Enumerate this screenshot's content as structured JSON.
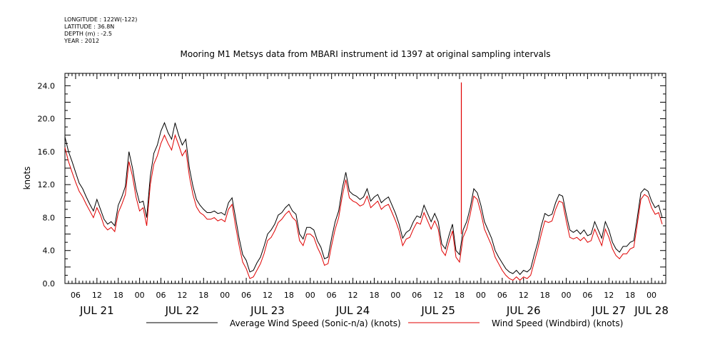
{
  "header": {
    "meta": [
      "LONGITUDE : 122W(-122)",
      "LATITUDE : 36.8N",
      "DEPTH (m) : -2.5",
      "YEAR : 2012"
    ],
    "title": "Mooring M1 Metsys data from MBARI instrument id 1397 at original sampling intervals"
  },
  "chart_data": {
    "type": "line",
    "title": "Mooring M1 Metsys data from MBARI instrument id 1397 at original sampling intervals",
    "xlabel": "",
    "ylabel": "knots",
    "xlim": [
      3,
      172
    ],
    "ylim": [
      0,
      25.5
    ],
    "yticks": [
      0,
      4,
      8,
      12,
      16,
      20,
      24
    ],
    "ytick_labels": [
      "0.0",
      "4.0",
      "8.0",
      "12.0",
      "16.0",
      "20.0",
      "24.0"
    ],
    "x_units": "hours since JUL 21 00:00, 2012",
    "xtick_labels": [
      {
        "x": 6,
        "label": "06"
      },
      {
        "x": 12,
        "label": "12"
      },
      {
        "x": 18,
        "label": "18"
      },
      {
        "x": 24,
        "label": "00"
      },
      {
        "x": 30,
        "label": "06"
      },
      {
        "x": 36,
        "label": "12"
      },
      {
        "x": 42,
        "label": "18"
      },
      {
        "x": 48,
        "label": "00"
      },
      {
        "x": 54,
        "label": "06"
      },
      {
        "x": 60,
        "label": "12"
      },
      {
        "x": 66,
        "label": "18"
      },
      {
        "x": 72,
        "label": "00"
      },
      {
        "x": 78,
        "label": "06"
      },
      {
        "x": 84,
        "label": "12"
      },
      {
        "x": 90,
        "label": "18"
      },
      {
        "x": 96,
        "label": "00"
      },
      {
        "x": 102,
        "label": "06"
      },
      {
        "x": 108,
        "label": "12"
      },
      {
        "x": 114,
        "label": "18"
      },
      {
        "x": 120,
        "label": "00"
      },
      {
        "x": 126,
        "label": "06"
      },
      {
        "x": 132,
        "label": "12"
      },
      {
        "x": 138,
        "label": "18"
      },
      {
        "x": 144,
        "label": "00"
      },
      {
        "x": 150,
        "label": "06"
      },
      {
        "x": 156,
        "label": "12"
      },
      {
        "x": 162,
        "label": "18"
      },
      {
        "x": 168,
        "label": "00"
      }
    ],
    "day_labels": [
      {
        "x": 12,
        "label": "JUL 21"
      },
      {
        "x": 36,
        "label": "JUL 22"
      },
      {
        "x": 60,
        "label": "JUL 23"
      },
      {
        "x": 84,
        "label": "JUL 24"
      },
      {
        "x": 108,
        "label": "JUL 25"
      },
      {
        "x": 132,
        "label": "JUL 26"
      },
      {
        "x": 156,
        "label": "JUL 27"
      },
      {
        "x": 168,
        "label": "JUL 28"
      }
    ],
    "legend_position": "bottom",
    "series": [
      {
        "name": "Average Wind Speed (Sonic-n/a) (knots)",
        "color": "#000000",
        "x": [
          3,
          4,
          5,
          6,
          7,
          8,
          9,
          10,
          11,
          12,
          13,
          14,
          15,
          16,
          17,
          18,
          19,
          20,
          21,
          22,
          23,
          24,
          25,
          26,
          27,
          28,
          29,
          30,
          31,
          32,
          33,
          34,
          35,
          36,
          37,
          38,
          39,
          40,
          41,
          42,
          43,
          44,
          45,
          46,
          47,
          48,
          49,
          50,
          51,
          52,
          53,
          54,
          55,
          56,
          57,
          58,
          59,
          60,
          61,
          62,
          63,
          64,
          65,
          66,
          67,
          68,
          69,
          70,
          71,
          72,
          73,
          74,
          75,
          76,
          77,
          78,
          79,
          80,
          81,
          82,
          83,
          84,
          85,
          86,
          87,
          88,
          89,
          90,
          91,
          92,
          93,
          94,
          95,
          96,
          97,
          98,
          99,
          100,
          101,
          102,
          103,
          104,
          105,
          106,
          107,
          108,
          109,
          110,
          111,
          112,
          113,
          114,
          115,
          116,
          117,
          118,
          119,
          120,
          121,
          122,
          123,
          124,
          125,
          126,
          127,
          128,
          129,
          130,
          131,
          132,
          133,
          134,
          135,
          136,
          137,
          138,
          139,
          140,
          141,
          142,
          143,
          144,
          145,
          146,
          147,
          148,
          149,
          150,
          151,
          152,
          153,
          154,
          155,
          156,
          157,
          158,
          159,
          160,
          161,
          162,
          163,
          164,
          165,
          166,
          167,
          168,
          169,
          170,
          171
        ],
        "y": [
          17.8,
          16,
          14.8,
          13.5,
          12.2,
          11.5,
          10.5,
          9.6,
          8.8,
          10.2,
          9,
          7.8,
          7.2,
          7.5,
          7,
          9.5,
          10.5,
          11.8,
          16,
          14,
          11.5,
          9.8,
          10,
          8,
          13,
          15.8,
          16.8,
          18.5,
          19.5,
          18.3,
          17.5,
          19.5,
          18,
          16.8,
          17.5,
          14,
          11.8,
          10.2,
          9.5,
          9,
          8.6,
          8.6,
          8.8,
          8.5,
          8.6,
          8.3,
          9.8,
          10.4,
          8,
          5.5,
          3.5,
          2.8,
          1.4,
          1.6,
          2.5,
          3.2,
          4.5,
          6,
          6.5,
          7.2,
          8.3,
          8.6,
          9.2,
          9.6,
          8.8,
          8.4,
          6,
          5.4,
          6.8,
          6.8,
          6.5,
          5.2,
          4.4,
          3,
          3.2,
          5.5,
          7.5,
          8.8,
          11.5,
          13.5,
          11.2,
          10.8,
          10.6,
          10.2,
          10.5,
          11.5,
          10,
          10.5,
          10.8,
          9.8,
          10.2,
          10.5,
          9.5,
          8.5,
          7.2,
          5.5,
          6.2,
          6.5,
          7.5,
          8.2,
          8,
          9.5,
          8.5,
          7.5,
          8.5,
          7.5,
          4.8,
          4.2,
          5.8,
          7.2,
          4,
          3.5,
          6.5,
          7.5,
          9.2,
          11.5,
          11,
          9.5,
          7.5,
          6.5,
          5.5,
          4,
          3.2,
          2.5,
          1.8,
          1.4,
          1.2,
          1.6,
          1.1,
          1.6,
          1.4,
          1.8,
          3.5,
          5,
          7,
          8.5,
          8.2,
          8.4,
          9.8,
          10.8,
          10.6,
          8.4,
          6.5,
          6.2,
          6.5,
          6,
          6.5,
          5.8,
          6,
          7.5,
          6.5,
          5.5,
          7.5,
          6.5,
          5,
          4.2,
          3.8,
          4.5,
          4.5,
          5,
          5.2,
          8,
          11,
          11.5,
          11.2,
          10,
          9.2,
          9.5,
          8
        ]
      },
      {
        "name": "Wind Speed (Windbird) (knots)",
        "color": "#e00000",
        "x": [
          3,
          4,
          5,
          6,
          7,
          8,
          9,
          10,
          11,
          12,
          13,
          14,
          15,
          16,
          17,
          18,
          19,
          20,
          21,
          22,
          23,
          24,
          25,
          26,
          27,
          28,
          29,
          30,
          31,
          32,
          33,
          34,
          35,
          36,
          37,
          38,
          39,
          40,
          41,
          42,
          43,
          44,
          45,
          46,
          47,
          48,
          49,
          50,
          51,
          52,
          53,
          54,
          55,
          56,
          57,
          58,
          59,
          60,
          61,
          62,
          63,
          64,
          65,
          66,
          67,
          68,
          69,
          70,
          71,
          72,
          73,
          74,
          75,
          76,
          77,
          78,
          79,
          80,
          81,
          82,
          83,
          84,
          85,
          86,
          87,
          88,
          89,
          90,
          91,
          92,
          93,
          94,
          95,
          96,
          97,
          98,
          99,
          100,
          101,
          102,
          103,
          104,
          105,
          106,
          107,
          108,
          109,
          110,
          111,
          112,
          113,
          114,
          115,
          116,
          117,
          118,
          119,
          120,
          121,
          122,
          123,
          124,
          125,
          126,
          127,
          128,
          129,
          130,
          131,
          132,
          133,
          134,
          135,
          136,
          137,
          138,
          139,
          140,
          141,
          142,
          143,
          144,
          145,
          146,
          147,
          148,
          149,
          150,
          151,
          152,
          153,
          154,
          155,
          156,
          157,
          158,
          159,
          160,
          161,
          162,
          163,
          164,
          165,
          166,
          167,
          168,
          169,
          170,
          171
        ],
        "y": [
          16.5,
          14.8,
          13.5,
          12.3,
          11.2,
          10.5,
          9.6,
          8.8,
          8,
          9.2,
          8.3,
          7,
          6.5,
          6.8,
          6.3,
          8.6,
          9.6,
          10.8,
          14.8,
          13,
          10.5,
          8.8,
          9.2,
          7,
          12,
          14.5,
          15.5,
          17,
          18,
          17,
          16.2,
          18,
          16.8,
          15.5,
          16.2,
          13,
          10.8,
          9.3,
          8.6,
          8.3,
          7.8,
          7.8,
          8,
          7.6,
          7.8,
          7.5,
          9,
          9.6,
          7,
          4.6,
          2.6,
          1.8,
          0.6,
          0.8,
          1.6,
          2.4,
          3.6,
          5.2,
          5.6,
          6.4,
          7.4,
          7.8,
          8.4,
          8.8,
          8,
          7.6,
          5.2,
          4.6,
          6,
          6,
          5.6,
          4.4,
          3.5,
          2.2,
          2.4,
          4.6,
          6.6,
          8,
          10.6,
          12.6,
          10.4,
          10,
          9.8,
          9.4,
          9.6,
          10.6,
          9.2,
          9.6,
          10,
          9,
          9.4,
          9.6,
          8.6,
          7.6,
          6.4,
          4.6,
          5.4,
          5.6,
          6.6,
          7.4,
          7.2,
          8.6,
          7.6,
          6.6,
          7.6,
          6.6,
          4,
          3.4,
          5,
          6.4,
          3.2,
          2.6,
          5.6,
          6.6,
          8.4,
          10.6,
          10.2,
          8.6,
          6.6,
          5.6,
          4.6,
          3.2,
          2.4,
          1.6,
          1,
          0.6,
          0.4,
          0.8,
          0.4,
          0.8,
          0.6,
          1,
          2.6,
          4.2,
          6,
          7.6,
          7.4,
          7.6,
          9,
          10,
          9.8,
          7.6,
          5.6,
          5.4,
          5.6,
          5.2,
          5.6,
          5,
          5.2,
          6.6,
          5.6,
          4.6,
          6.6,
          5.6,
          4.2,
          3.4,
          3,
          3.6,
          3.6,
          4.2,
          4.4,
          7.2,
          10.2,
          10.8,
          10.5,
          9.2,
          8.4,
          8.6,
          7.2
        ]
      }
    ],
    "annotation": {
      "series": "Wind Speed (Windbird) (knots)",
      "x": 114.5,
      "y": 24.4,
      "type": "spike"
    }
  }
}
